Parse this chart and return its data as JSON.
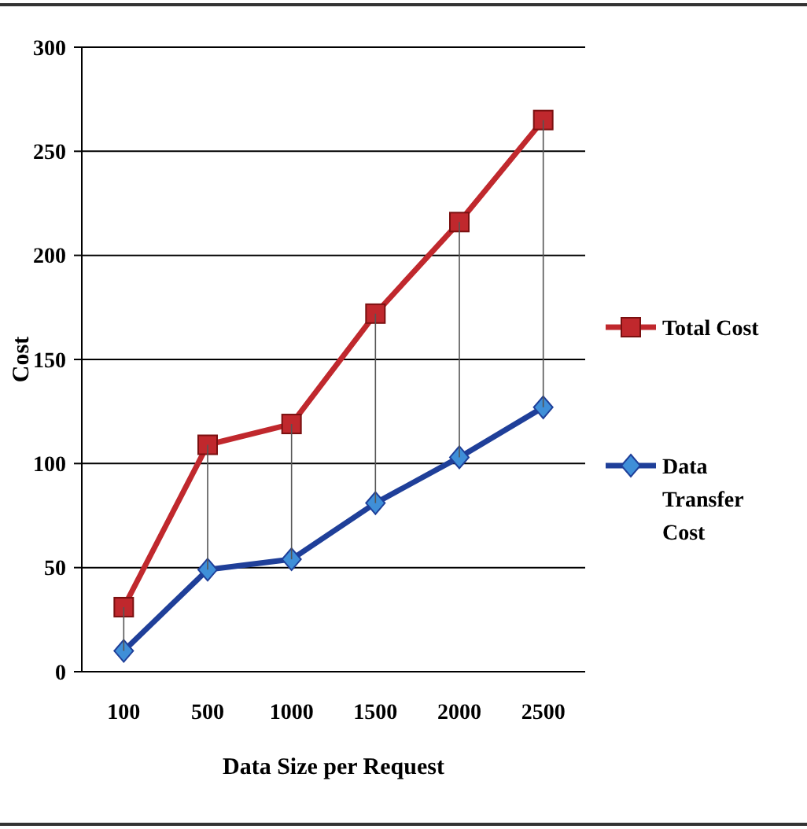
{
  "chart_data": {
    "type": "line",
    "xlabel": "Data Size per Request",
    "ylabel": "Cost",
    "categories": [
      "100",
      "500",
      "1000",
      "1500",
      "2000",
      "2500"
    ],
    "series": [
      {
        "name": "Total Cost",
        "color": "#c0282d",
        "marker": "square",
        "values": [
          31,
          109,
          119,
          172,
          216,
          265
        ]
      },
      {
        "name": "Data Transfer Cost",
        "color": "#1f3f99",
        "marker": "diamond",
        "values": [
          10,
          49,
          54,
          81,
          103,
          127
        ],
        "errors": [
          [
            10,
            31
          ],
          [
            49,
            109
          ],
          [
            54,
            119
          ],
          [
            81,
            172
          ],
          [
            103,
            216
          ],
          [
            127,
            265
          ]
        ]
      }
    ],
    "ylim": [
      0,
      300
    ],
    "yticks": [
      0,
      50,
      100,
      150,
      200,
      250,
      300
    ],
    "grid": "y",
    "legend": "right"
  }
}
